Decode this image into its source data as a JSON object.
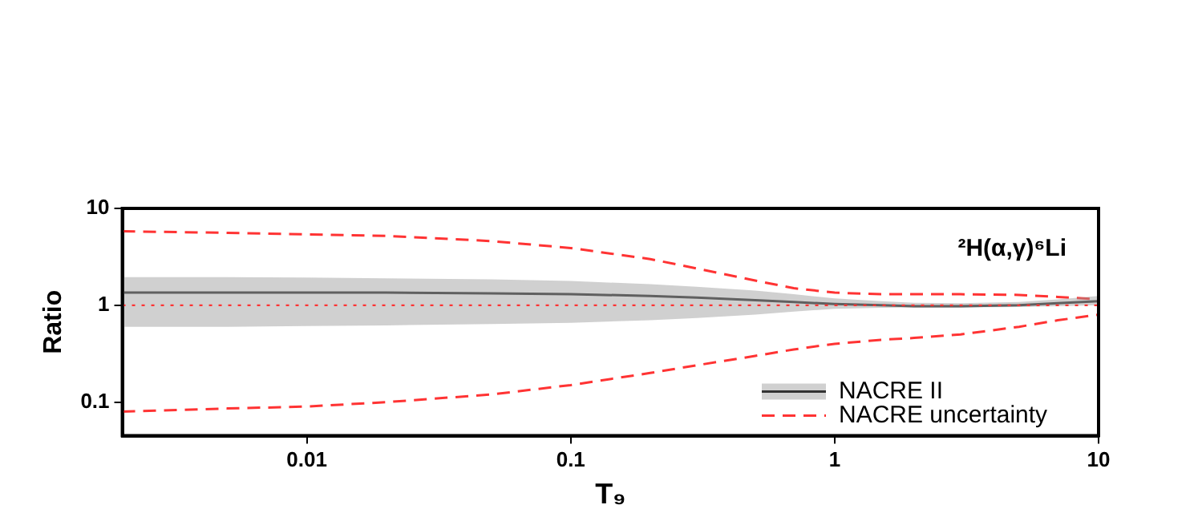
{
  "chart_data": {
    "type": "line",
    "xlabel": "T₉",
    "ylabel": "Ratio",
    "log": "xy",
    "grid": false,
    "legend": "bottom right",
    "marker": "none",
    "xlim": [
      0.002,
      10
    ],
    "xticks": [
      0.01,
      0.1,
      1,
      10
    ],
    "ylim": [
      0.045,
      10
    ],
    "yticks": [
      0.1,
      1,
      10
    ],
    "x": [
      0.002,
      0.005,
      0.01,
      0.02,
      0.05,
      0.1,
      0.2,
      0.3,
      0.5,
      0.7,
      1,
      1.5,
      2,
      3,
      5,
      7,
      10
    ],
    "series": [
      {
        "name": "NACRE II",
        "color": "#333333",
        "line_style": "solid",
        "values": [
          1.35,
          1.35,
          1.35,
          1.35,
          1.33,
          1.3,
          1.25,
          1.2,
          1.13,
          1.08,
          1.03,
          1.0,
          0.98,
          0.98,
          1.0,
          1.05,
          1.1
        ],
        "lower": [
          0.6,
          0.6,
          0.61,
          0.62,
          0.64,
          0.66,
          0.7,
          0.74,
          0.8,
          0.86,
          0.92,
          0.94,
          0.95,
          0.95,
          0.96,
          0.98,
          1.0
        ],
        "upper": [
          1.95,
          1.95,
          1.93,
          1.9,
          1.85,
          1.78,
          1.65,
          1.55,
          1.42,
          1.3,
          1.18,
          1.1,
          1.06,
          1.05,
          1.08,
          1.15,
          1.25
        ]
      },
      {
        "name": "NACRE uncertainty",
        "color": "#ff3333",
        "line_style": "dashed",
        "values": [
          5.8,
          5.6,
          5.4,
          5.2,
          4.6,
          3.9,
          3.0,
          2.4,
          1.8,
          1.5,
          1.35,
          1.3,
          1.3,
          1.3,
          1.28,
          1.22,
          1.15
        ]
      },
      {
        "color": "#ff3333",
        "line_style": "dashed",
        "values": [
          0.08,
          0.086,
          0.09,
          0.1,
          0.12,
          0.15,
          0.2,
          0.24,
          0.3,
          0.35,
          0.4,
          0.44,
          0.46,
          0.5,
          0.6,
          0.7,
          0.8
        ]
      }
    ],
    "ref_lines": [
      {
        "axis": "y",
        "value": 1,
        "color": "#ff3333",
        "line_style": "dotted"
      }
    ],
    "annotations": [
      "²H(α,γ)⁶Li"
    ]
  }
}
